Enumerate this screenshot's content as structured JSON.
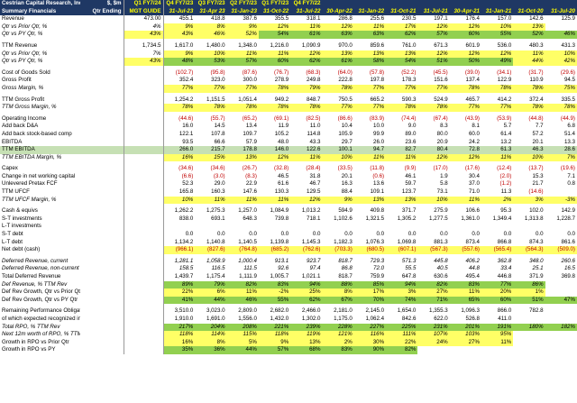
{
  "header": {
    "company": "Cestrian Capital Research, Inc",
    "subtitle": "Summary Financials",
    "unit": "$, $m",
    "unit2": "Qtr Ending",
    "guide_top": "Q1 FY7/24",
    "guide_bottom": "MGT GUIDE",
    "quarters": [
      "Q4 FY7/23",
      "Q3 FY7/23",
      "Q2 FY7/23",
      "Q1 FY7/23",
      "Q4 FY7/22",
      "",
      "",
      "",
      "",
      "",
      "",
      ""
    ],
    "dates": [
      "31-Jul-23",
      "31-Apr 23",
      "31-Jan-23",
      "31-Oct-22",
      "31-Jul-22",
      "30-Apr-22",
      "31-Jan-22",
      "31-Oct-21",
      "31-Jul-21",
      "30-Apr-21",
      "31-Jan-21",
      "31-Oct-20",
      "31-Jul-20"
    ]
  },
  "rows": [
    {
      "label": "Revenue",
      "guide": "473.00",
      "v": [
        "455.1",
        "418.8",
        "387.6",
        "355.5",
        "318.1",
        "286.8",
        "255.6",
        "230.5",
        "197.1",
        "176.4",
        "157.0",
        "142.6",
        "125.9"
      ]
    },
    {
      "label": "Qtr vs Prior Qtr, %",
      "it": 1,
      "guide": "4%",
      "v": [
        "9%",
        "8%",
        "9%",
        "12%",
        "11%",
        "12%",
        "11%",
        "17%",
        "12%",
        "12%",
        "10%",
        "13%",
        ""
      ],
      "hl": "y"
    },
    {
      "label": "Qtr vs PY Qtr, %",
      "it": 1,
      "guide": "43%",
      "guideHl": "y",
      "v": [
        "43%",
        "46%",
        "52%",
        "54%",
        "61%",
        "63%",
        "63%",
        "62%",
        "57%",
        "60%",
        "55%",
        "52%",
        "46%"
      ],
      "hl": "y",
      "greens": [
        3,
        4,
        5,
        6,
        7,
        8,
        9,
        10,
        11,
        12
      ]
    },
    {
      "sp": 1
    },
    {
      "label": "TTM Revenue",
      "guide": "1,734.5",
      "v": [
        "1,617.0",
        "1,480.0",
        "1,348.0",
        "1,216.0",
        "1,090.9",
        "970.0",
        "859.6",
        "761.0",
        "671.3",
        "601.9",
        "536.0",
        "480.3",
        "431.3"
      ]
    },
    {
      "label": "Qtr vs Prior Qtr, %",
      "it": 1,
      "guide": "7%",
      "v": [
        "9%",
        "10%",
        "11%",
        "11%",
        "12%",
        "13%",
        "13%",
        "13%",
        "12%",
        "12%",
        "12%",
        "11%",
        "10%"
      ],
      "hl": "y"
    },
    {
      "label": "Qtr vs PY Qtr, %",
      "it": 1,
      "guide": "43%",
      "guideHl": "y",
      "v": [
        "48%",
        "53%",
        "57%",
        "60%",
        "62%",
        "61%",
        "58%",
        "54%",
        "51%",
        "50%",
        "49%",
        "44%",
        "42%"
      ],
      "hl": "y",
      "greens": [
        0,
        1,
        2,
        3,
        4,
        5,
        6,
        7,
        8,
        9,
        10
      ]
    },
    {
      "sp": 1
    },
    {
      "label": "Cost of Goods Sold",
      "guide": "",
      "v": [
        "(102.7)",
        "(95.8)",
        "(87.6)",
        "(76.7)",
        "(68.3)",
        "(64.0)",
        "(57.8)",
        "(52.2)",
        "(45.5)",
        "(39.0)",
        "(34.1)",
        "(31.7)",
        "(29.6)"
      ],
      "neg": 1
    },
    {
      "label": "Gross Profit",
      "guide": "",
      "v": [
        "352.4",
        "323.0",
        "300.0",
        "278.9",
        "249.8",
        "222.8",
        "197.8",
        "178.3",
        "151.6",
        "137.4",
        "122.9",
        "110.9",
        "94.5"
      ]
    },
    {
      "label": "Gross Margin, %",
      "it": 1,
      "guide": "",
      "v": [
        "77%",
        "77%",
        "77%",
        "78%",
        "79%",
        "78%",
        "77%",
        "77%",
        "77%",
        "78%",
        "78%",
        "78%",
        "75%"
      ],
      "hl": "y"
    },
    {
      "sp": 1
    },
    {
      "label": "TTM Gross Profit",
      "guide": "",
      "v": [
        "1,254.2",
        "1,151.5",
        "1,051.4",
        "949.2",
        "848.7",
        "750.5",
        "665.2",
        "590.3",
        "524.9",
        "465.7",
        "414.2",
        "372.4",
        "335.5"
      ]
    },
    {
      "label": "TTM Gross Margin, %",
      "it": 1,
      "guide": "",
      "v": [
        "78%",
        "78%",
        "78%",
        "78%",
        "78%",
        "77%",
        "77%",
        "78%",
        "78%",
        "77%",
        "77%",
        "78%",
        "78%"
      ],
      "hl": "y"
    },
    {
      "sp": 1
    },
    {
      "label": "Operating Income",
      "guide": "",
      "v": [
        "(44.6)",
        "(55.7)",
        "(65.2)",
        "(69.1)",
        "(82.5)",
        "(86.6)",
        "(83.9)",
        "(74.4)",
        "(67.4)",
        "(43.9)",
        "(53.9)",
        "(44.8)",
        "(44.9)"
      ],
      "neg": 1
    },
    {
      "label": "Add back D&A",
      "guide": "",
      "v": [
        "16.0",
        "14.5",
        "13.4",
        "11.9",
        "11.0",
        "10.4",
        "10.0",
        "9.0",
        "8.3",
        "8.1",
        "5.7",
        "7.7",
        "6.8"
      ]
    },
    {
      "label": "Add back stock-based comp",
      "guide": "",
      "v": [
        "122.1",
        "107.8",
        "109.7",
        "105.2",
        "114.8",
        "105.9",
        "99.9",
        "89.0",
        "80.0",
        "60.0",
        "61.4",
        "57.2",
        "51.4"
      ]
    },
    {
      "label": "EBITDA",
      "guide": "",
      "v": [
        "93.5",
        "66.6",
        "57.9",
        "48.0",
        "43.3",
        "29.7",
        "26.0",
        "23.6",
        "20.9",
        "24.2",
        "13.2",
        "20.1",
        "13.3"
      ]
    },
    {
      "label": "TTM EBITDA",
      "ebitda": 1,
      "guide": "",
      "v": [
        "266.0",
        "215.7",
        "178.8",
        "146.0",
        "122.6",
        "100.1",
        "94.7",
        "82.7",
        "80.4",
        "72.8",
        "61.3",
        "46.3",
        "28.6"
      ]
    },
    {
      "label": "TTM EBITDA Margin, %",
      "it": 1,
      "guide": "",
      "v": [
        "16%",
        "15%",
        "13%",
        "12%",
        "11%",
        "10%",
        "11%",
        "11%",
        "12%",
        "12%",
        "11%",
        "10%",
        "7%"
      ],
      "hl": "y"
    },
    {
      "sp": 1
    },
    {
      "label": "Capex",
      "guide": "",
      "v": [
        "(34.6)",
        "(34.6)",
        "(26.7)",
        "(32.8)",
        "(28.4)",
        "(33.5)",
        "(11.8)",
        "(9.9)",
        "(17.0)",
        "(17.6)",
        "(12.4)",
        "(13.7)",
        "(19.6)"
      ],
      "neg": 1
    },
    {
      "label": "Change in net working capital",
      "guide": "",
      "v": [
        "(6.6)",
        "(3.0)",
        "(8.3)",
        "46.5",
        "31.8",
        "20.1",
        "(0.6)",
        "46.1",
        "1.9",
        "30.4",
        "(2.0)",
        "15.3",
        "7.1"
      ],
      "negIdx": [
        0,
        1,
        2,
        6,
        10
      ]
    },
    {
      "label": "Unlevered Pretax FCF",
      "guide": "",
      "v": [
        "52.3",
        "29.0",
        "22.9",
        "61.6",
        "46.7",
        "16.3",
        "13.6",
        "59.7",
        "5.8",
        "37.0",
        "(1.2)",
        "21.7",
        "0.8"
      ],
      "negIdx": [
        10
      ]
    },
    {
      "label": "TTM UFCF",
      "guide": "",
      "v": [
        "165.8",
        "160.3",
        "147.6",
        "130.3",
        "129.5",
        "88.4",
        "109.1",
        "123.7",
        "73.1",
        "71.0",
        "11.3",
        "(14.6)",
        ""
      ],
      "negIdx": [
        11
      ]
    },
    {
      "label": "TTM UFCF Margin, %",
      "it": 1,
      "guide": "",
      "v": [
        "10%",
        "11%",
        "11%",
        "11%",
        "12%",
        "9%",
        "13%",
        "13%",
        "10%",
        "11%",
        "2%",
        "3%",
        "-3%"
      ],
      "hl": "y"
    },
    {
      "sp": 1
    },
    {
      "label": "Cash & equivs",
      "guide": "",
      "v": [
        "1,262.2",
        "1,275.3",
        "1,257.0",
        "1,084.9",
        "1,013.2",
        "594.9",
        "409.8",
        "371.7",
        "275.9",
        "106.6",
        "95.3",
        "102.0",
        "142.9"
      ]
    },
    {
      "label": "S-T investments",
      "guide": "",
      "v": [
        "838.0",
        "693.1",
        "648.3",
        "739.8",
        "718.1",
        "1,102.6",
        "1,321.5",
        "1,305.2",
        "1,277.5",
        "1,361.0",
        "1,349.4",
        "1,313.8",
        "1,228.7"
      ]
    },
    {
      "label": "L-T investments",
      "guide": "",
      "v": [
        "",
        "",
        "",
        "",
        "",
        "",
        "",
        "",
        "",
        "",
        "",
        "",
        ""
      ]
    },
    {
      "label": "S-T debt",
      "guide": "",
      "v": [
        "0.0",
        "0.0",
        "0.0",
        "0.0",
        "0.0",
        "0.0",
        "0.0",
        "0.0",
        "0.0",
        "0.0",
        "0.0",
        "0.0",
        "0.0"
      ]
    },
    {
      "label": "L-T debt",
      "guide": "",
      "v": [
        "1,134.2",
        "1,140.8",
        "1,140.5",
        "1,139.8",
        "1,145.3",
        "1,182.3",
        "1,076.3",
        "1,069.8",
        "881.3",
        "873.4",
        "866.8",
        "874.3",
        "861.6"
      ]
    },
    {
      "label": "Net debt (cash)",
      "guide": "",
      "v": [
        "(966.1)",
        "(827.6)",
        "(764.8)",
        "(685.2)",
        "(762.6)",
        "(703.3)",
        "(680.5)",
        "(607.1)",
        "(567.3)",
        "(557.6)",
        "(565.4)",
        "(564.3)",
        "(509.0)"
      ],
      "neg": 1,
      "hl": "y"
    },
    {
      "sp": 1
    },
    {
      "label": "Deferred Revenue, current",
      "it": 1,
      "guide": "",
      "v": [
        "1,281.1",
        "1,058.9",
        "1,000.4",
        "913.1",
        "923.7",
        "818.7",
        "729.3",
        "571.3",
        "445.8",
        "406.2",
        "362.8",
        "348.0",
        "260.6"
      ]
    },
    {
      "label": "Deferred Revenue, non-current",
      "it": 1,
      "guide": "",
      "v": [
        "158.5",
        "116.5",
        "111.5",
        "92.6",
        "97.4",
        "86.8",
        "72.0",
        "55.5",
        "40.5",
        "44.8",
        "33.4",
        "25.1",
        "16.5"
      ]
    },
    {
      "label": "Total Deferred Revenue",
      "guide": "",
      "v": [
        "1,439.7",
        "1,175.4",
        "1,111.9",
        "1,005.7",
        "1,021.1",
        "818.7",
        "759.9",
        "647.8",
        "630.6",
        "495.4",
        "446.8",
        "371.9",
        "369.8"
      ]
    },
    {
      "label": "Def Revenue, % TTM Rev",
      "it": 1,
      "guide": "",
      "v": [
        "89%",
        "79%",
        "82%",
        "83%",
        "94%",
        "88%",
        "85%",
        "94%",
        "82%",
        "83%",
        "77%",
        "86%",
        ""
      ],
      "hl": "g"
    },
    {
      "label": "Def Rev Growth, Qtr vs Prior Qtr",
      "guide": "",
      "v": [
        "22%",
        "6%",
        "11%",
        "-2%",
        "25%",
        "8%",
        "17%",
        "3%",
        "27%",
        "11%",
        "20%",
        "1%",
        ""
      ],
      "hl": "y"
    },
    {
      "label": "Def Rev Growth, Qtr vs PY Qtr",
      "guide": "",
      "v": [
        "41%",
        "44%",
        "46%",
        "55%",
        "62%",
        "67%",
        "70%",
        "74%",
        "71%",
        "65%",
        "60%",
        "51%",
        "47%"
      ],
      "hl": "y",
      "greens": [
        0,
        1,
        2,
        3,
        4,
        5,
        6,
        7,
        8,
        9,
        10,
        11,
        12
      ]
    },
    {
      "sp": 1
    },
    {
      "label": "Remaining Performance Obligations",
      "guide": "",
      "v": [
        "3,510.0",
        "3,023.0",
        "2,809.0",
        "2,682.0",
        "2,466.0",
        "2,181.0",
        "2,145.0",
        "1,654.0",
        "1,355.3",
        "1,096.3",
        "866.0",
        "782.8",
        ""
      ]
    },
    {
      "label": "of which expected recognized in n",
      "guide": "",
      "v": [
        "1,910.0",
        "1,691.0",
        "1,556.0",
        "1,432.0",
        "1,302.0",
        "1,175.0",
        "1,062.4",
        "842.6",
        "622.0",
        "526.8",
        "411.0",
        "",
        ""
      ]
    },
    {
      "label": "Total RPO, % TTM Rev",
      "it": 1,
      "guide": "",
      "v": [
        "217%",
        "204%",
        "208%",
        "221%",
        "239%",
        "228%",
        "227%",
        "225%",
        "231%",
        "201%",
        "191%",
        "180%",
        "182%"
      ],
      "hl": "g"
    },
    {
      "label": "Next 12m worth of RPO, % TTM R",
      "it": 1,
      "guide": "",
      "v": [
        "118%",
        "114%",
        "115%",
        "118%",
        "119%",
        "121%",
        "116%",
        "111%",
        "107%",
        "103%",
        "95%",
        "",
        ""
      ],
      "hl": "y"
    },
    {
      "label": "Growth in RPO vs Prior Qtr",
      "guide": "",
      "v": [
        "16%",
        "8%",
        "5%",
        "9%",
        "13%",
        "2%",
        "30%",
        "22%",
        "24%",
        "27%",
        "11%",
        "",
        ""
      ],
      "hl": "y"
    },
    {
      "label": "Growth in RPO vs PY",
      "guide": "",
      "v": [
        "35%",
        "36%",
        "44%",
        "57%",
        "68%",
        "83%",
        "90%",
        "82%",
        "",
        "",
        "",
        "",
        ""
      ],
      "hl": "y",
      "greens": [
        0,
        1,
        2,
        3,
        4,
        5,
        6,
        7
      ]
    }
  ]
}
